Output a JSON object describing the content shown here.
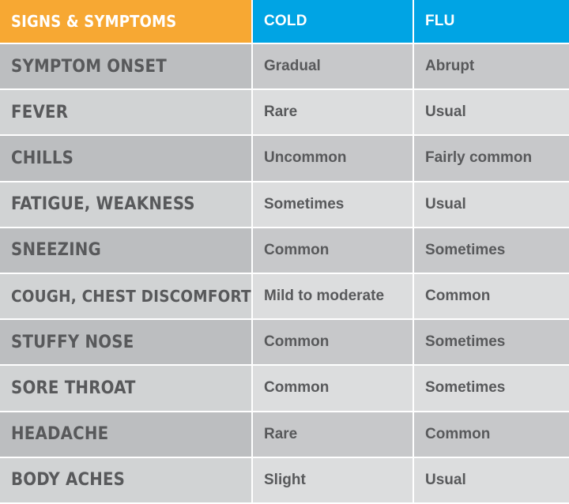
{
  "header": {
    "symptoms_label": "SIGNS & SYMPTOMS",
    "cold_label": "COLD",
    "flu_label": "FLU"
  },
  "rows": [
    {
      "symptom": "SYMPTOM ONSET",
      "cold": "Gradual",
      "flu": "Abrupt"
    },
    {
      "symptom": "FEVER",
      "cold": "Rare",
      "flu": "Usual"
    },
    {
      "symptom": "CHILLS",
      "cold": "Uncommon",
      "flu": "Fairly common"
    },
    {
      "symptom": "FATIGUE, WEAKNESS",
      "cold": "Sometimes",
      "flu": "Usual"
    },
    {
      "symptom": "SNEEZING",
      "cold": "Common",
      "flu": "Sometimes"
    },
    {
      "symptom": "COUGH, CHEST DISCOMFORT",
      "cold": "Mild to moderate",
      "flu": "Common"
    },
    {
      "symptom": "STUFFY NOSE",
      "cold": "Common",
      "flu": "Sometimes"
    },
    {
      "symptom": "SORE THROAT",
      "cold": "Common",
      "flu": "Sometimes"
    },
    {
      "symptom": "HEADACHE",
      "cold": "Rare",
      "flu": "Common"
    },
    {
      "symptom": "BODY ACHES",
      "cold": "Slight",
      "flu": "Usual"
    }
  ],
  "colors": {
    "header_orange": "#f7a833",
    "header_blue": "#00a4e4",
    "text_gray": "#58595b",
    "row_dark": "#bcbec0",
    "row_light": "#d1d3d4"
  }
}
